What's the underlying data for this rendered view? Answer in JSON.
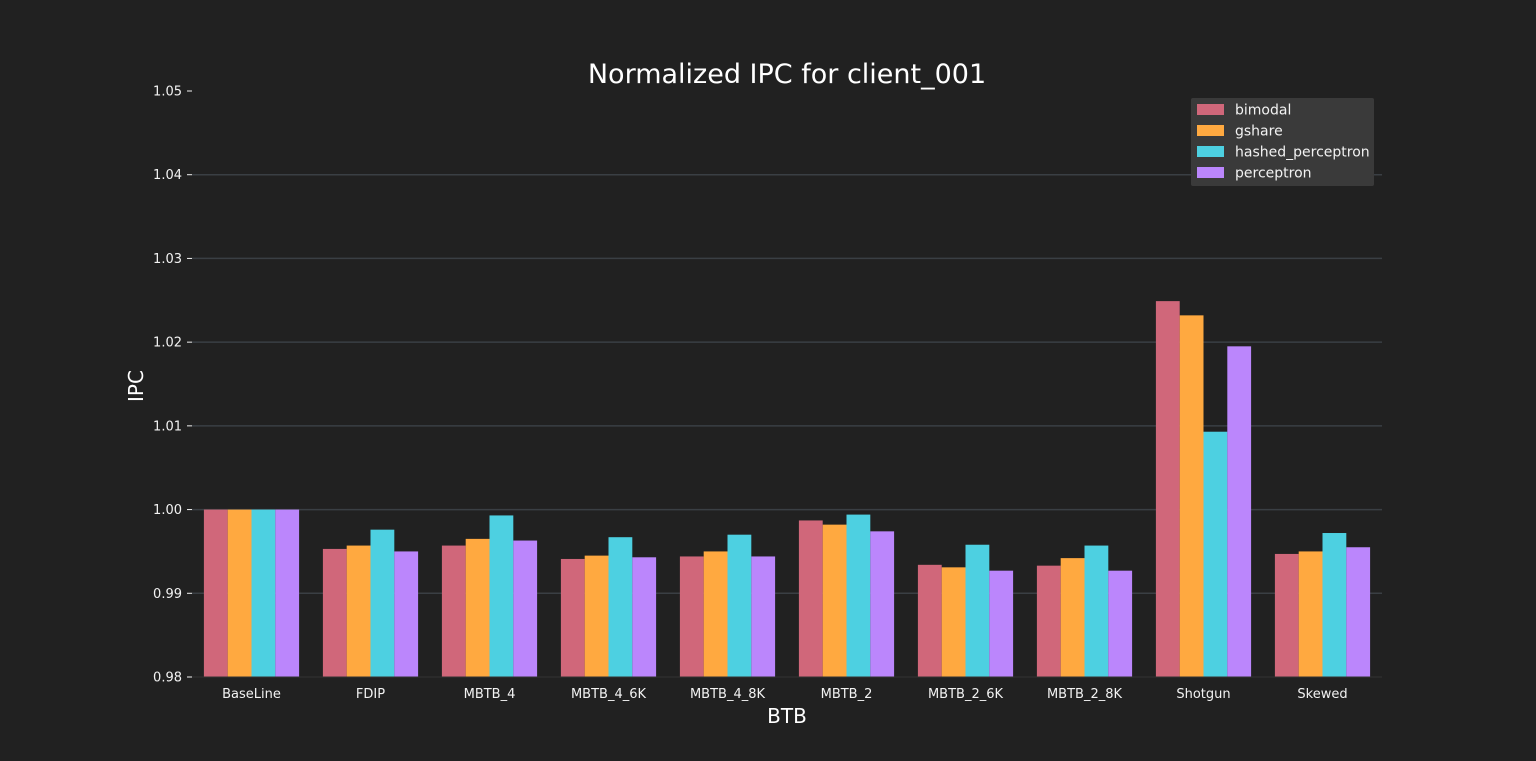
{
  "chart_data": {
    "type": "bar",
    "title": "Normalized IPC for client_001",
    "xlabel": "BTB",
    "ylabel": "IPC",
    "categories": [
      "BaseLine",
      "FDIP",
      "MBTB_4",
      "MBTB_4_6K",
      "MBTB_4_8K",
      "MBTB_2",
      "MBTB_2_6K",
      "MBTB_2_8K",
      "Shotgun",
      "Skewed"
    ],
    "series": [
      {
        "name": "bimodal",
        "color": "#d0677a",
        "values": [
          1.0,
          0.9953,
          0.9957,
          0.9941,
          0.9944,
          0.9987,
          0.9934,
          0.9933,
          1.0249,
          0.9947
        ]
      },
      {
        "name": "gshare",
        "color": "#ffa940",
        "values": [
          1.0,
          0.9957,
          0.9965,
          0.9945,
          0.995,
          0.9982,
          0.9931,
          0.9942,
          1.0232,
          0.995
        ]
      },
      {
        "name": "hashed_perceptron",
        "color": "#4dd0e1",
        "values": [
          1.0,
          0.9976,
          0.9993,
          0.9967,
          0.997,
          0.9994,
          0.9958,
          0.9957,
          1.0093,
          0.9972
        ]
      },
      {
        "name": "perceptron",
        "color": "#bb86fc",
        "values": [
          1.0,
          0.995,
          0.9963,
          0.9943,
          0.9944,
          0.9974,
          0.9927,
          0.9927,
          1.0195,
          0.9955
        ]
      }
    ],
    "ylim": [
      0.98,
      1.05
    ],
    "yticks": [
      "0.98",
      "0.99",
      "1.00",
      "1.01",
      "1.02",
      "1.03",
      "1.04",
      "1.05"
    ],
    "grid": "horizontal",
    "legend_position": "top-right"
  },
  "colors": {
    "background": "#212121",
    "grid": "#3a3f44",
    "legend_background": "#3a3a3a",
    "text": "#f2f2f2"
  }
}
